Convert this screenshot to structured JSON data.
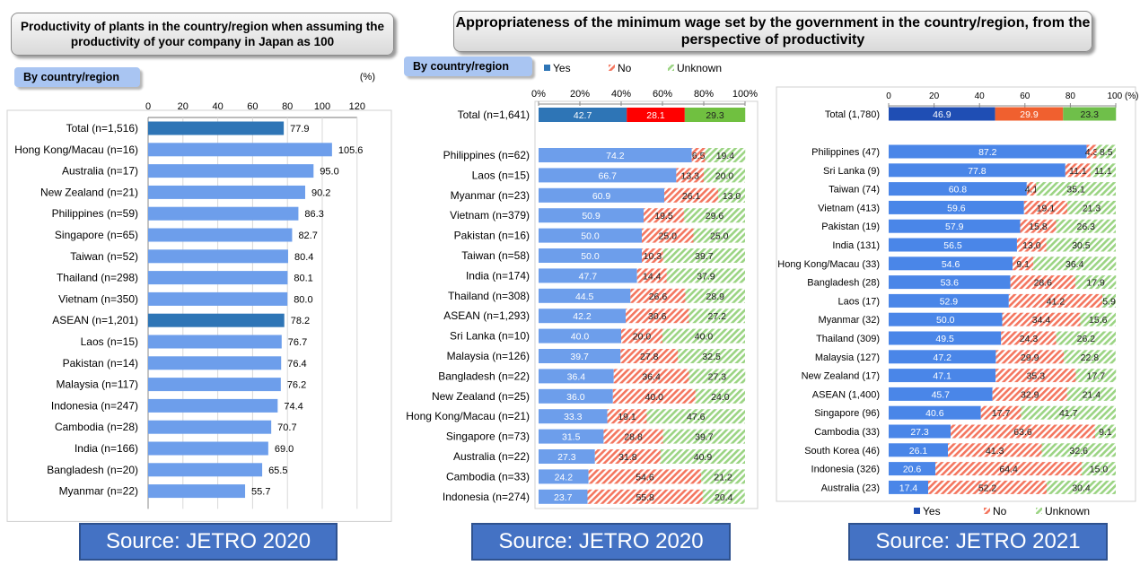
{
  "chart_data": [
    {
      "type": "bar",
      "title": "Productivity of plants in the country/region when assuming the productivity of your company in Japan as 100",
      "tag": "By country/region",
      "unit": "(%)",
      "xlim": [
        0,
        120
      ],
      "ticks": [
        "0",
        "20",
        "40",
        "60",
        "80",
        "100",
        "120"
      ],
      "highlight_color": "#2e75b6",
      "bar_color": "#6d9eeb",
      "categories": [
        "Total (n=1,516)",
        "Hong Kong/Macau (n=16)",
        "Australia (n=17)",
        "New Zealand (n=21)",
        "Philippines (n=59)",
        "Singapore (n=65)",
        "Taiwan (n=52)",
        "Thailand (n=298)",
        "Vietnam (n=350)",
        "ASEAN (n=1,201)",
        "Laos (n=15)",
        "Pakistan (n=14)",
        "Malaysia (n=117)",
        "Indonesia (n=247)",
        "Cambodia (n=28)",
        "India (n=166)",
        "Bangladesh (n=20)",
        "Myanmar (n=22)"
      ],
      "values": [
        77.9,
        105.6,
        95.0,
        90.2,
        86.3,
        82.7,
        80.4,
        80.1,
        80.0,
        78.2,
        76.7,
        76.4,
        76.2,
        74.4,
        70.7,
        69.0,
        65.5,
        55.7
      ],
      "labels": [
        "77.9",
        "105.6",
        "95.0",
        "90.2",
        "86.3",
        "82.7",
        "80.4",
        "80.1",
        "80.0",
        "78.2",
        "76.7",
        "76.4",
        "76.2",
        "74.4",
        "70.7",
        "69.0",
        "65.5",
        "55.7"
      ],
      "highlight": [
        0,
        9
      ],
      "source": "Source: JETRO 2020"
    },
    {
      "type": "bar",
      "stacked": true,
      "title": "Appropriateness of the minimum wage set by the government in the country/region, from the perspective of productivity",
      "tag": "By country/region",
      "legend": [
        "Yes",
        "No",
        "Unknown"
      ],
      "ticks": [
        "0%",
        "20%",
        "40%",
        "60%",
        "80%",
        "100%"
      ],
      "colors": {
        "yes": "#6d9eeb",
        "no": "#f4765f",
        "unknown": "#9bd483",
        "total_yes": "#2e75b6",
        "total_no": "#ff0000",
        "total_unknown": "#70c040"
      },
      "total": {
        "label": "Total (n=1,641)",
        "yes": 42.7,
        "no": 28.1,
        "unknown": 29.3,
        "yes_label": "42.7",
        "no_label": "28.1",
        "unknown_label": "29.3"
      },
      "categories": [
        "Philippines (n=62)",
        "Laos (n=15)",
        "Myanmar (n=23)",
        "Vietnam (n=379)",
        "Pakistan (n=16)",
        "Taiwan (n=58)",
        "India (n=174)",
        "Thailand (n=308)",
        "ASEAN (n=1,293)",
        "Sri Lanka (n=10)",
        "Malaysia (n=126)",
        "Bangladesh (n=22)",
        "New Zealand (n=25)",
        "Hong Kong/Macau (n=21)",
        "Singapore (n=73)",
        "Australia (n=22)",
        "Cambodia (n=33)",
        "Indonesia (n=274)"
      ],
      "series": [
        {
          "name": "Yes",
          "values": [
            74.2,
            66.7,
            60.9,
            50.9,
            50.0,
            50.0,
            47.7,
            44.5,
            42.2,
            40.0,
            39.7,
            36.4,
            36.0,
            33.3,
            31.5,
            27.3,
            24.2,
            23.7
          ],
          "labels": [
            "74.2",
            "66.7",
            "60.9",
            "50.9",
            "50.0",
            "50.0",
            "47.7",
            "44.5",
            "42.2",
            "40.0",
            "39.7",
            "36.4",
            "36.0",
            "33.3",
            "31.5",
            "27.3",
            "24.2",
            "23.7"
          ]
        },
        {
          "name": "No",
          "values": [
            6.5,
            13.3,
            26.1,
            19.5,
            25.0,
            10.3,
            14.4,
            26.6,
            30.6,
            20.0,
            27.8,
            36.4,
            40.0,
            19.1,
            28.8,
            31.8,
            54.6,
            55.8
          ],
          "labels": [
            "6.5",
            "13.3",
            "26.1",
            "19.5",
            "25.0",
            "10.3",
            "14.4",
            "26.6",
            "30.6",
            "20.0",
            "27.8",
            "36.4",
            "40.0",
            "19.1",
            "28.8",
            "31.8",
            "54.6",
            "55.8"
          ]
        },
        {
          "name": "Unknown",
          "values": [
            19.4,
            20.0,
            13.0,
            29.6,
            25.0,
            39.7,
            37.9,
            28.9,
            27.2,
            40.0,
            32.5,
            27.3,
            24.0,
            47.6,
            39.7,
            40.9,
            21.2,
            20.4
          ],
          "labels": [
            "19.4",
            "20.0",
            "13.0",
            "29.6",
            "25.0",
            "39.7",
            "37.9",
            "28.9",
            "27.2",
            "40.0",
            "32.5",
            "27.3",
            "24.0",
            "47.6",
            "39.7",
            "40.9",
            "21.2",
            "20.4"
          ]
        }
      ],
      "source": "Source: JETRO 2020"
    },
    {
      "type": "bar",
      "stacked": true,
      "legend": [
        "Yes",
        "No",
        "Unknown"
      ],
      "ticks": [
        "0",
        "20",
        "40",
        "60",
        "80",
        "100 (%)"
      ],
      "colors": {
        "yes": "#4a86e8",
        "no": "#f4765f",
        "unknown": "#9bd483",
        "total_yes": "#1f4eb4",
        "total_no": "#f0602f",
        "total_unknown": "#6fbf4a"
      },
      "total": {
        "label": "Total (1,780)",
        "yes": 46.9,
        "no": 29.9,
        "unknown": 23.3,
        "yes_label": "46.9",
        "no_label": "29.9",
        "unknown_label": "23.3"
      },
      "categories": [
        "Philippines (47)",
        "Sri Lanka (9)",
        "Taiwan (74)",
        "Vietnam (413)",
        "Pakistan (19)",
        "India (131)",
        "Hong Kong/Macau (33)",
        "Bangladesh (28)",
        "Laos (17)",
        "Myanmar (32)",
        "Thailand (309)",
        "Malaysia (127)",
        "New Zealand (17)",
        "ASEAN  (1,400)",
        "Singapore (96)",
        "Cambodia (33)",
        "South Korea (46)",
        "Indonesia (326)",
        "Australia (23)"
      ],
      "series": [
        {
          "name": "Yes",
          "values": [
            87.2,
            77.8,
            60.8,
            59.6,
            57.9,
            56.5,
            54.6,
            53.6,
            52.9,
            50.0,
            49.5,
            47.2,
            47.1,
            45.7,
            40.6,
            27.3,
            26.1,
            20.6,
            17.4
          ],
          "labels": [
            "87.2",
            "77.8",
            "60.8",
            "59.6",
            "57.9",
            "56.5",
            "54.6",
            "53.6",
            "52.9",
            "50.0",
            "49.5",
            "47.2",
            "47.1",
            "45.7",
            "40.6",
            "27.3",
            "26.1",
            "20.6",
            "17.4"
          ]
        },
        {
          "name": "No",
          "values": [
            4.3,
            11.1,
            4.1,
            19.1,
            15.8,
            13.0,
            9.1,
            28.6,
            41.2,
            34.4,
            24.3,
            29.9,
            35.3,
            32.9,
            17.7,
            63.6,
            41.3,
            64.4,
            52.2
          ],
          "labels": [
            "4.3",
            "11.1",
            "4.1",
            "19.1",
            "15.8",
            "13.0",
            "9.1",
            "28.6",
            "41.2",
            "34.4",
            "24.3",
            "29.9",
            "35.3",
            "32.9",
            "17.7",
            "63.6",
            "41.3",
            "64.4",
            "52.2"
          ]
        },
        {
          "name": "Unknown",
          "values": [
            8.5,
            11.1,
            35.1,
            21.3,
            26.3,
            30.5,
            36.4,
            17.9,
            5.9,
            15.6,
            26.2,
            22.8,
            17.7,
            21.4,
            41.7,
            9.1,
            32.6,
            15.0,
            30.4
          ],
          "labels": [
            "8.5",
            "11.1",
            "35.1",
            "21.3",
            "26.3",
            "30.5",
            "36.4",
            "17.9",
            "5.9",
            "15.6",
            "26.2",
            "22.8",
            "17.7",
            "21.4",
            "41.7",
            "9.1",
            "32.6",
            "15.0",
            "30.4"
          ]
        }
      ],
      "source": "Source: JETRO 2021"
    }
  ]
}
